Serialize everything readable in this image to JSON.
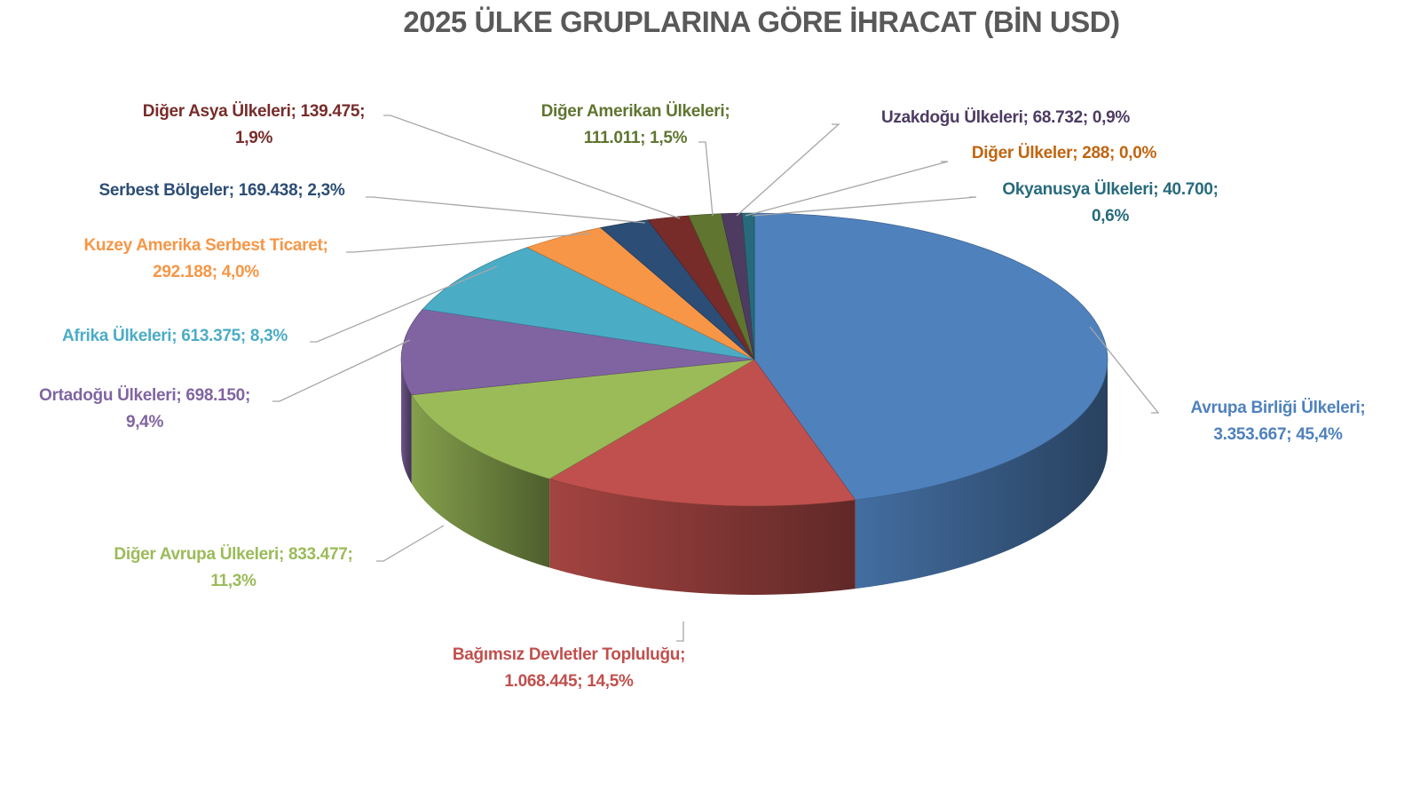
{
  "chart_data": {
    "type": "pie",
    "style": "3d",
    "title": "2025 ÜLKE GRUPLARINA GÖRE İHRACAT (BİN USD)",
    "slices": [
      {
        "name": "Avrupa Birliği Ülkeleri",
        "value": 3353667,
        "percent": 45.4,
        "line1": "Avrupa Birliği Ülkeleri;",
        "line2": "3.353.667; 45,4%",
        "color": "#4F81BD",
        "label_color": "#4F81BD"
      },
      {
        "name": "Bağımsız Devletler Topluluğu",
        "value": 1068445,
        "percent": 14.5,
        "line1": "Bağımsız Devletler Topluluğu;",
        "line2": "1.068.445; 14,5%",
        "color": "#C0504D",
        "label_color": "#C0504D"
      },
      {
        "name": "Diğer Avrupa Ülkeleri",
        "value": 833477,
        "percent": 11.3,
        "line1": "Diğer Avrupa Ülkeleri; 833.477;",
        "line2": "11,3%",
        "color": "#9BBB59",
        "label_color": "#9BBB59"
      },
      {
        "name": "Ortadoğu Ülkeleri",
        "value": 698150,
        "percent": 9.4,
        "line1": "Ortadoğu Ülkeleri; 698.150;",
        "line2": "9,4%",
        "color": "#8064A2",
        "label_color": "#8064A2"
      },
      {
        "name": "Afrika Ülkeleri",
        "value": 613375,
        "percent": 8.3,
        "line1": "Afrika Ülkeleri; 613.375; 8,3%",
        "line2": "",
        "color": "#4BACC6",
        "label_color": "#4BACC6"
      },
      {
        "name": "Kuzey Amerika Serbest Ticaret",
        "value": 292188,
        "percent": 4.0,
        "line1": "Kuzey Amerika Serbest Ticaret;",
        "line2": "292.188; 4,0%",
        "color": "#F79646",
        "label_color": "#F79646"
      },
      {
        "name": "Serbest Bölgeler",
        "value": 169438,
        "percent": 2.3,
        "line1": "Serbest Bölgeler; 169.438; 2,3%",
        "line2": "",
        "color": "#2C4D75",
        "label_color": "#2C4D75"
      },
      {
        "name": "Diğer Asya Ülkeleri",
        "value": 139475,
        "percent": 1.9,
        "line1": "Diğer Asya Ülkeleri; 139.475;",
        "line2": "1,9%",
        "color": "#772C2A",
        "label_color": "#772C2A"
      },
      {
        "name": "Diğer Amerikan Ülkeleri",
        "value": 111011,
        "percent": 1.5,
        "line1": "Diğer Amerikan Ülkeleri;",
        "line2": "111.011; 1,5%",
        "color": "#5F7530",
        "label_color": "#5F7530"
      },
      {
        "name": "Uzakdoğu Ülkeleri",
        "value": 68732,
        "percent": 0.9,
        "line1": "Uzakdoğu Ülkeleri; 68.732; 0,9%",
        "line2": "",
        "color": "#4D3B62",
        "label_color": "#4D3B62"
      },
      {
        "name": "Diğer Ülkeler",
        "value": 288,
        "percent": 0.0,
        "line1": "Diğer Ülkeler; 288; 0,0%",
        "line2": "",
        "color": "#B65708",
        "label_color": "#C0650F"
      },
      {
        "name": "Okyanusya Ülkeleri",
        "value": 40700,
        "percent": 0.6,
        "line1": "Okyanusya Ülkeleri; 40.700;",
        "line2": "0,6%",
        "color": "#276A7C",
        "label_color": "#276A7C"
      }
    ]
  }
}
